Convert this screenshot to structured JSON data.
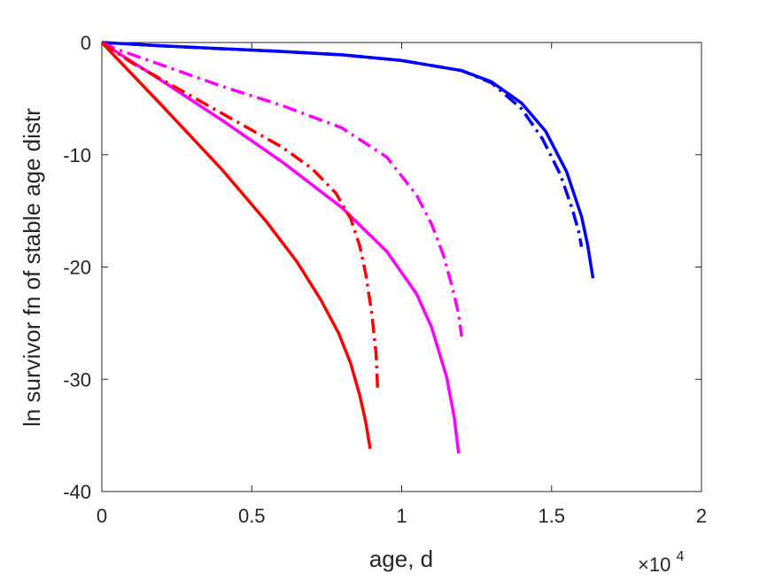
{
  "chart_data": {
    "type": "line",
    "xlabel": "age, d",
    "ylabel": "ln survivor fn of stable age distr",
    "x_exponent_label": {
      "base": "×10",
      "exponent": "4"
    },
    "xlim": [
      0,
      20000
    ],
    "ylim": [
      -40,
      0
    ],
    "x_ticks": [
      0,
      5000,
      10000,
      15000,
      20000
    ],
    "x_tick_labels": [
      "0",
      "0.5",
      "1",
      "1.5",
      "2"
    ],
    "y_ticks": [
      -40,
      -30,
      -20,
      -10,
      0
    ],
    "y_tick_labels": [
      "-40",
      "-30",
      "-20",
      "-10",
      "0"
    ],
    "grid": false,
    "legend": "none",
    "series": [
      {
        "color": "#0000ff",
        "style": "solid",
        "x": [
          0,
          2000,
          4000,
          6000,
          8000,
          10000,
          12000,
          13000,
          14000,
          14800,
          15500,
          16000,
          16200,
          16380
        ],
        "y": [
          0,
          -0.3,
          -0.55,
          -0.8,
          -1.1,
          -1.6,
          -2.5,
          -3.5,
          -5.4,
          -7.9,
          -11.5,
          -15.5,
          -18.0,
          -21.0
        ]
      },
      {
        "color": "#0000ff",
        "style": "dashdot",
        "x": [
          0,
          2000,
          4000,
          6000,
          8000,
          10000,
          12000,
          13000,
          14000,
          14700,
          15300,
          15700,
          15900,
          16000
        ],
        "y": [
          0,
          -0.3,
          -0.55,
          -0.8,
          -1.1,
          -1.6,
          -2.5,
          -3.6,
          -5.9,
          -8.6,
          -11.8,
          -14.9,
          -16.8,
          -18.2
        ]
      },
      {
        "color": "#ff00ff",
        "style": "dashdot",
        "x": [
          0,
          500,
          2000,
          4000,
          6000,
          8000,
          9500,
          10500,
          11000,
          11400,
          11700,
          11900,
          12000
        ],
        "y": [
          0,
          -0.6,
          -2.0,
          -3.9,
          -5.6,
          -7.6,
          -10.2,
          -13.6,
          -16.2,
          -19.0,
          -21.9,
          -24.2,
          -26.2
        ]
      },
      {
        "color": "#ff00ff",
        "style": "solid",
        "x": [
          0,
          2000,
          4000,
          6000,
          8000,
          9500,
          10500,
          11000,
          11500,
          11750,
          11900
        ],
        "y": [
          0,
          -3.4,
          -6.9,
          -10.6,
          -14.7,
          -18.6,
          -22.4,
          -25.4,
          -29.8,
          -33.3,
          -36.6
        ]
      },
      {
        "color": "#ff0000",
        "style": "dashdot",
        "x": [
          0,
          1000,
          2000,
          4000,
          6000,
          7000,
          7800,
          8300,
          8600,
          8800,
          9000,
          9150,
          9200
        ],
        "y": [
          0,
          -1.8,
          -3.3,
          -6.3,
          -9.3,
          -11.2,
          -13.4,
          -15.7,
          -18.1,
          -20.6,
          -24.1,
          -27.8,
          -31.0
        ]
      },
      {
        "color": "#ff0000",
        "style": "solid",
        "x": [
          0,
          1000,
          2000,
          4000,
          5500,
          6500,
          7300,
          7900,
          8300,
          8600,
          8800,
          8950
        ],
        "y": [
          0,
          -2.8,
          -5.6,
          -11.3,
          -16.0,
          -19.5,
          -22.9,
          -25.9,
          -28.6,
          -31.4,
          -33.8,
          -36.2
        ]
      }
    ]
  }
}
